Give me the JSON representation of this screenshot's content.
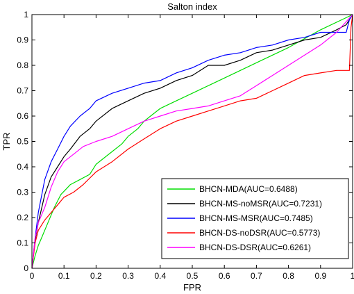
{
  "chart_data": {
    "type": "line",
    "title": "Salton index",
    "xlabel": "FPR",
    "ylabel": "TPR",
    "xlim": [
      0,
      1
    ],
    "ylim": [
      0,
      1
    ],
    "xticks": [
      "0",
      "0.1",
      "0.2",
      "0.3",
      "0.4",
      "0.5",
      "0.6",
      "0.7",
      "0.8",
      "0.9",
      "1"
    ],
    "yticks": [
      "0",
      "0.1",
      "0.2",
      "0.3",
      "0.4",
      "0.5",
      "0.6",
      "0.7",
      "0.8",
      "0.9",
      "1"
    ],
    "grid": false,
    "legend_position": "bottom-right",
    "series": [
      {
        "name": "BHCN-MDA(AUC=0.6488)",
        "color": "#00dd00",
        "x": [
          0,
          0.01,
          0.02,
          0.03,
          0.05,
          0.07,
          0.09,
          0.12,
          0.15,
          0.18,
          0.2,
          0.23,
          0.25,
          0.28,
          0.3,
          0.33,
          0.35,
          0.37,
          0.4,
          0.45,
          0.5,
          0.6,
          0.7,
          0.8,
          0.9,
          1.0
        ],
        "y": [
          0,
          0.05,
          0.09,
          0.12,
          0.18,
          0.24,
          0.29,
          0.33,
          0.35,
          0.37,
          0.41,
          0.44,
          0.46,
          0.49,
          0.52,
          0.55,
          0.58,
          0.6,
          0.63,
          0.66,
          0.69,
          0.75,
          0.81,
          0.87,
          0.94,
          1.0
        ]
      },
      {
        "name": "BHCN-MS-noMSR(AUC=0.7231)",
        "color": "#000000",
        "x": [
          0,
          0.01,
          0.02,
          0.04,
          0.06,
          0.08,
          0.1,
          0.12,
          0.15,
          0.18,
          0.2,
          0.25,
          0.3,
          0.35,
          0.4,
          0.45,
          0.5,
          0.55,
          0.6,
          0.65,
          0.7,
          0.75,
          0.8,
          0.85,
          0.9,
          0.95,
          0.98,
          1.0
        ],
        "y": [
          0,
          0.11,
          0.18,
          0.29,
          0.36,
          0.4,
          0.44,
          0.47,
          0.52,
          0.55,
          0.58,
          0.63,
          0.66,
          0.69,
          0.71,
          0.74,
          0.76,
          0.8,
          0.8,
          0.82,
          0.85,
          0.86,
          0.88,
          0.9,
          0.91,
          0.94,
          0.96,
          1.0
        ]
      },
      {
        "name": "BHCN-MS-MSR(AUC=0.7485)",
        "color": "#0000ff",
        "x": [
          0,
          0.01,
          0.02,
          0.04,
          0.06,
          0.08,
          0.1,
          0.12,
          0.15,
          0.18,
          0.2,
          0.25,
          0.3,
          0.35,
          0.4,
          0.45,
          0.5,
          0.55,
          0.6,
          0.65,
          0.7,
          0.75,
          0.8,
          0.85,
          0.9,
          0.95,
          0.98,
          0.99,
          1.0
        ],
        "y": [
          0,
          0.12,
          0.22,
          0.35,
          0.42,
          0.47,
          0.52,
          0.56,
          0.6,
          0.63,
          0.66,
          0.69,
          0.71,
          0.73,
          0.74,
          0.77,
          0.79,
          0.82,
          0.84,
          0.85,
          0.87,
          0.88,
          0.9,
          0.91,
          0.93,
          0.93,
          0.93,
          0.98,
          1.0
        ]
      },
      {
        "name": "BHCN-DS-noDSR(AUC=0.5773)",
        "color": "#ff0000",
        "x": [
          0,
          0.01,
          0.02,
          0.04,
          0.06,
          0.08,
          0.1,
          0.13,
          0.16,
          0.2,
          0.25,
          0.3,
          0.35,
          0.4,
          0.45,
          0.5,
          0.55,
          0.6,
          0.65,
          0.7,
          0.75,
          0.8,
          0.85,
          0.9,
          0.95,
          0.99,
          0.995,
          1.0
        ],
        "y": [
          0,
          0.1,
          0.15,
          0.19,
          0.22,
          0.25,
          0.28,
          0.3,
          0.33,
          0.38,
          0.42,
          0.47,
          0.51,
          0.55,
          0.58,
          0.6,
          0.62,
          0.64,
          0.66,
          0.67,
          0.7,
          0.73,
          0.76,
          0.77,
          0.78,
          0.78,
          0.95,
          1.0
        ]
      },
      {
        "name": "BHCN-DS-DSR(AUC=0.6261)",
        "color": "#ff00ff",
        "x": [
          0,
          0.01,
          0.02,
          0.04,
          0.06,
          0.08,
          0.1,
          0.13,
          0.16,
          0.2,
          0.25,
          0.3,
          0.35,
          0.4,
          0.45,
          0.5,
          0.55,
          0.6,
          0.65,
          0.7,
          0.75,
          0.8,
          0.85,
          0.9,
          0.95,
          1.0
        ],
        "y": [
          0,
          0.12,
          0.18,
          0.24,
          0.32,
          0.38,
          0.42,
          0.45,
          0.48,
          0.5,
          0.52,
          0.55,
          0.58,
          0.6,
          0.62,
          0.63,
          0.64,
          0.66,
          0.68,
          0.72,
          0.76,
          0.8,
          0.84,
          0.88,
          0.93,
          1.0
        ]
      }
    ]
  }
}
